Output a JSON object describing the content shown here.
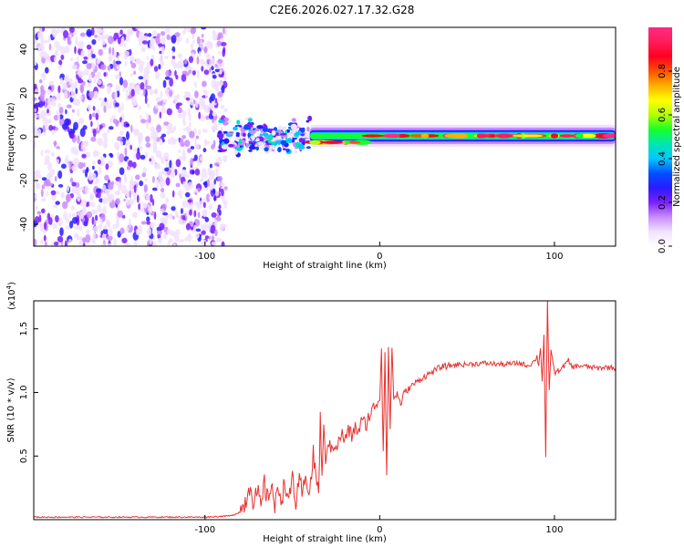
{
  "title": "C2E6.2026.027.17.32.G28",
  "chart_data": [
    {
      "type": "heatmap",
      "name": "spectrogram",
      "xlabel": "Height of straight line (km)",
      "ylabel": "Frequency (Hz)",
      "xlim": [
        -198,
        135
      ],
      "ylim": [
        -50,
        50
      ],
      "xticks": [
        -100,
        0,
        100
      ],
      "xtick_labels": [
        "-100",
        "0",
        "100"
      ],
      "yticks": [
        -40,
        -20,
        0,
        20,
        40
      ],
      "ytick_labels": [
        "-40",
        "-20",
        "0",
        "20",
        "40"
      ],
      "colorbar": {
        "label": "Normalized spectral amplitude",
        "range": [
          0,
          1
        ],
        "ticks": [
          0.0,
          0.2,
          0.4,
          0.6,
          0.8
        ],
        "tick_labels": [
          "0.0",
          "0.2",
          "0.4",
          "0.6",
          "0.8"
        ],
        "colors": [
          "#ffffff",
          "#f1e1ff",
          "#c98cff",
          "#7a1fff",
          "#2a1bff",
          "#0050ff",
          "#00c8ff",
          "#00e6b4",
          "#18ff28",
          "#b4ff00",
          "#ffff00",
          "#ffb000",
          "#ff5000",
          "#ff0020",
          "#ff1c5a",
          "#ff2a82"
        ]
      },
      "regions": [
        {
          "label": "noise",
          "x": [
            -198,
            -88
          ],
          "freq_spread": [
            -50,
            50
          ],
          "amplitude": 0.2
        },
        {
          "label": "onset",
          "x": [
            -92,
            -40
          ],
          "freq_center": 0,
          "freq_width": 9,
          "amplitude": 0.45
        },
        {
          "label": "carrier",
          "x": [
            -40,
            135
          ],
          "freq_center": [
            -3,
            0
          ],
          "freq_width": 6,
          "amplitude": 0.95
        }
      ]
    },
    {
      "type": "line",
      "name": "snr",
      "xlabel": "Height of straight line (km)",
      "ylabel": "SNR (10 * v/v)",
      "multiplier_label": "(x10",
      "multiplier_exp": "4",
      "xlim": [
        -198,
        135
      ],
      "ylim": [
        0,
        1.72
      ],
      "xticks": [
        -100,
        0,
        100
      ],
      "xtick_labels": [
        "-100",
        "0",
        "100"
      ],
      "yticks": [
        0.5,
        1.0,
        1.5
      ],
      "ytick_labels": [
        "0.5",
        "1.0",
        "1.5"
      ],
      "color": "#e8312e",
      "series": [
        {
          "name": "SNR",
          "x": [
            -198,
            -150,
            -100,
            -85,
            -80,
            -78,
            -76,
            -74,
            -72,
            -70,
            -68,
            -66,
            -64,
            -62,
            -60,
            -58,
            -56,
            -54,
            -52,
            -50,
            -48,
            -46,
            -44,
            -42,
            -40,
            -38,
            -36,
            -35,
            -34,
            -33,
            -32,
            -31,
            -30,
            -28,
            -26,
            -24,
            -22,
            -20,
            -18,
            -16,
            -14,
            -12,
            -10,
            -8,
            -6,
            -4,
            -2,
            0,
            1,
            2,
            3,
            4,
            5,
            6,
            7,
            8,
            10,
            12,
            14,
            16,
            18,
            20,
            25,
            30,
            35,
            40,
            45,
            50,
            60,
            70,
            80,
            85,
            88,
            90,
            91,
            92,
            93,
            94,
            95,
            96,
            97,
            98,
            100,
            103,
            105,
            108,
            110,
            115,
            120,
            125,
            130,
            135
          ],
          "values": [
            0.02,
            0.02,
            0.02,
            0.03,
            0.06,
            0.1,
            0.18,
            0.3,
            0.12,
            0.22,
            0.08,
            0.28,
            0.14,
            0.32,
            0.08,
            0.25,
            0.18,
            0.3,
            0.1,
            0.36,
            0.12,
            0.28,
            0.2,
            0.34,
            0.22,
            0.5,
            0.32,
            0.18,
            0.8,
            0.35,
            0.7,
            0.45,
            0.62,
            0.55,
            0.6,
            0.58,
            0.68,
            0.62,
            0.7,
            0.66,
            0.72,
            0.7,
            0.78,
            0.74,
            0.82,
            0.86,
            0.92,
            0.95,
            1.35,
            0.55,
            1.3,
            0.35,
            1.3,
            0.75,
            1.36,
            0.95,
            1.0,
            0.9,
            1.0,
            1.02,
            1.05,
            1.07,
            1.12,
            1.16,
            1.2,
            1.21,
            1.22,
            1.22,
            1.23,
            1.22,
            1.23,
            1.21,
            1.24,
            1.28,
            1.22,
            1.35,
            1.1,
            1.45,
            0.5,
            1.72,
            1.0,
            1.35,
            1.15,
            1.18,
            1.2,
            1.25,
            1.2,
            1.21,
            1.2,
            1.19,
            1.2,
            1.19
          ]
        }
      ]
    }
  ]
}
